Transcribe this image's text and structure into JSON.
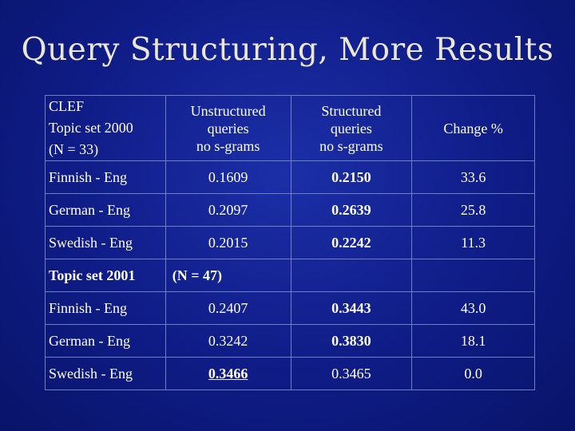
{
  "slide": {
    "title": "Query Structuring, More Results"
  },
  "table": {
    "header": {
      "label_lines": [
        "CLEF",
        "Topic set 2000",
        "(N = 33)"
      ],
      "col_unstructured": [
        "Unstructured",
        "queries",
        "no s-grams"
      ],
      "col_structured": [
        "Structured",
        "queries",
        "no s-grams"
      ],
      "col_change": "Change %"
    },
    "set2000_rows": [
      {
        "lang": "Finnish - Eng",
        "unstructured": "0.1609",
        "structured": "0.2150",
        "change": "33.6"
      },
      {
        "lang": "German - Eng",
        "unstructured": "0.2097",
        "structured": "0.2639",
        "change": "25.8"
      },
      {
        "lang": "Swedish - Eng",
        "unstructured": "0.2015",
        "structured": "0.2242",
        "change": "11.3"
      }
    ],
    "section2001": {
      "label": "Topic set 2001",
      "n": "(N = 47)"
    },
    "set2001_rows": [
      {
        "lang": "Finnish - Eng",
        "unstructured": "0.2407",
        "structured": "0.3443",
        "change": "43.0"
      },
      {
        "lang": "German - Eng",
        "unstructured": "0.3242",
        "structured": "0.3830",
        "change": "18.1"
      },
      {
        "lang": "Swedish - Eng",
        "unstructured": "0.3466",
        "structured": "0.3465",
        "change": "0.0"
      }
    ]
  }
}
